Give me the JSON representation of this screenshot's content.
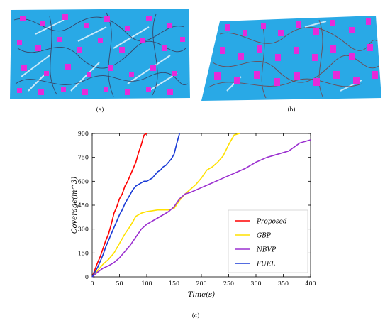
{
  "captions": {
    "a": "(a)",
    "b": "(b)",
    "c": "(c)"
  },
  "scene_colors": {
    "ground": "#29a9e6",
    "blocks": "#e62bd9",
    "path": "#3a3a5a"
  },
  "chart_data": {
    "type": "line",
    "xlabel": "Time(s)",
    "ylabel": "Coverage(m^3)",
    "xlim": [
      0,
      400
    ],
    "ylim": [
      0,
      900
    ],
    "xticks": [
      0,
      50,
      100,
      150,
      200,
      250,
      300,
      350,
      400
    ],
    "yticks": [
      0,
      150,
      300,
      450,
      600,
      750,
      900
    ],
    "legend_position": "bottom-right",
    "grid": false,
    "series": [
      {
        "name": "Proposed",
        "color": "#ff0000",
        "x": [
          0,
          5,
          10,
          15,
          20,
          25,
          30,
          35,
          40,
          45,
          50,
          55,
          60,
          65,
          70,
          75,
          80,
          85,
          90,
          95,
          100
        ],
        "y": [
          0,
          45,
          90,
          130,
          180,
          230,
          270,
          330,
          400,
          440,
          490,
          520,
          570,
          600,
          640,
          680,
          720,
          780,
          830,
          890,
          900
        ]
      },
      {
        "name": "GBP",
        "color": "#ffe100",
        "x": [
          0,
          10,
          20,
          30,
          40,
          50,
          60,
          70,
          80,
          90,
          100,
          110,
          120,
          130,
          140,
          150,
          160,
          170,
          180,
          190,
          200,
          210,
          220,
          230,
          240,
          250,
          260,
          270
        ],
        "y": [
          0,
          40,
          80,
          110,
          150,
          210,
          270,
          320,
          380,
          400,
          410,
          415,
          420,
          420,
          420,
          430,
          480,
          520,
          550,
          580,
          620,
          670,
          690,
          720,
          760,
          830,
          890,
          900
        ]
      },
      {
        "name": "NBVP",
        "color": "#9b30d0",
        "x": [
          0,
          10,
          20,
          30,
          40,
          50,
          60,
          70,
          80,
          90,
          100,
          110,
          120,
          130,
          140,
          150,
          160,
          170,
          180,
          200,
          220,
          240,
          260,
          280,
          300,
          320,
          340,
          360,
          380,
          400
        ],
        "y": [
          0,
          30,
          55,
          70,
          90,
          120,
          160,
          200,
          250,
          300,
          330,
          350,
          370,
          390,
          410,
          440,
          490,
          520,
          530,
          560,
          590,
          620,
          650,
          680,
          720,
          750,
          770,
          790,
          840,
          860
        ]
      },
      {
        "name": "FUEL",
        "color": "#1a3bd6",
        "x": [
          0,
          5,
          10,
          15,
          20,
          25,
          30,
          35,
          40,
          45,
          50,
          55,
          60,
          65,
          70,
          75,
          80,
          85,
          90,
          95,
          100,
          105,
          110,
          115,
          120,
          125,
          130,
          135,
          140,
          145,
          150,
          155,
          160
        ],
        "y": [
          0,
          30,
          60,
          100,
          140,
          190,
          230,
          270,
          310,
          350,
          390,
          420,
          460,
          490,
          520,
          550,
          570,
          580,
          590,
          600,
          600,
          610,
          620,
          640,
          660,
          670,
          690,
          700,
          720,
          740,
          770,
          840,
          900
        ]
      }
    ]
  }
}
